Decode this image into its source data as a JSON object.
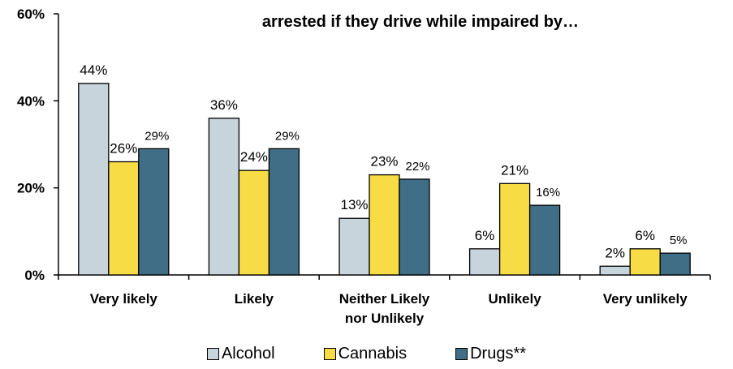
{
  "chart_data": {
    "type": "bar",
    "title_lines": [
      "",
      "arrested if they drive while impaired by…"
    ],
    "categories": [
      [
        "Very likely"
      ],
      [
        "Likely"
      ],
      [
        "Neither Likely",
        "nor Unlikely"
      ],
      [
        "Unlikely"
      ],
      [
        "Very unlikely"
      ]
    ],
    "series": [
      {
        "name": "Alcohol",
        "color": "#c8d4dc",
        "values": [
          44,
          36,
          13,
          6,
          2
        ],
        "labels": [
          "44%",
          "36%",
          "13%",
          "6%",
          "2%"
        ]
      },
      {
        "name": "Cannabis",
        "color": "#f7dc46",
        "values": [
          26,
          24,
          23,
          21,
          6
        ],
        "labels": [
          "26%",
          "24%",
          "23%",
          "21%",
          "6%"
        ]
      },
      {
        "name": "Drugs**",
        "color": "#3f6e86",
        "values": [
          29,
          29,
          22,
          16,
          5
        ],
        "labels": [
          "29%",
          "29%",
          "22%",
          "16%",
          "5%"
        ]
      }
    ],
    "ylim": [
      0,
      60
    ],
    "yticks": [
      0,
      20,
      40,
      60
    ],
    "ytick_labels": [
      "0%",
      "20%",
      "40%",
      "60%"
    ],
    "xlabel": "",
    "ylabel": "",
    "grid": false,
    "legend_position": "bottom"
  }
}
